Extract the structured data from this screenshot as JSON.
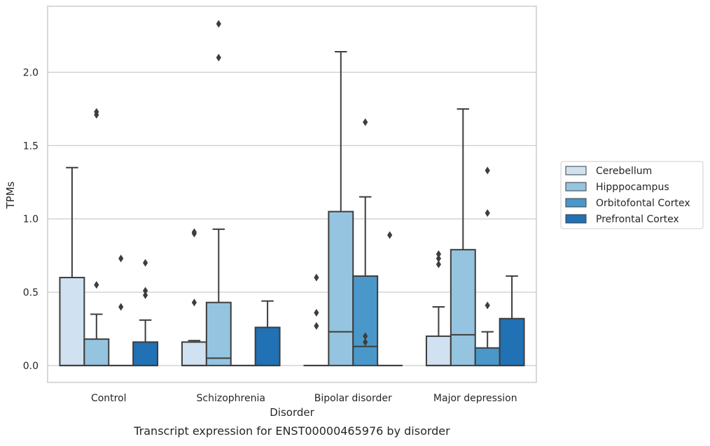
{
  "chart_data": {
    "type": "box",
    "title": "",
    "caption": "Transcript expression for ENST00000465976 by disorder",
    "xlabel": "Disorder",
    "ylabel": "TPMs",
    "ylim": [
      -0.115,
      2.45
    ],
    "yticks": [
      0.0,
      0.5,
      1.0,
      1.5,
      2.0
    ],
    "ytick_labels": [
      "0.0",
      "0.5",
      "1.0",
      "1.5",
      "2.0"
    ],
    "categories": [
      "Control",
      "Schizophrenia",
      "Bipolar disorder",
      "Major depression"
    ],
    "grid": "horizontal",
    "legend_position": "outside-right",
    "series": [
      {
        "name": "Cerebellum",
        "color": "#d0e1f2",
        "boxes": [
          {
            "whislo": 0.0,
            "q1": 0.0,
            "med": 0.0,
            "q3": 0.6,
            "whishi": 1.35,
            "fliers": []
          },
          {
            "whislo": 0.0,
            "q1": 0.0,
            "med": 0.0,
            "q3": 0.16,
            "whishi": 0.17,
            "fliers": [
              0.43,
              0.9,
              0.91
            ]
          },
          {
            "whislo": 0.0,
            "q1": 0.0,
            "med": 0.0,
            "q3": 0.0,
            "whishi": 0.0,
            "fliers": [
              0.27,
              0.36,
              0.6
            ]
          },
          {
            "whislo": 0.0,
            "q1": 0.0,
            "med": 0.0,
            "q3": 0.2,
            "whishi": 0.4,
            "fliers": [
              0.69,
              0.73,
              0.76
            ]
          }
        ]
      },
      {
        "name": "Hipppocampus",
        "color": "#94c4df",
        "boxes": [
          {
            "whislo": 0.0,
            "q1": 0.0,
            "med": 0.0,
            "q3": 0.18,
            "whishi": 0.35,
            "fliers": [
              0.55,
              1.71,
              1.73
            ]
          },
          {
            "whislo": 0.0,
            "q1": 0.0,
            "med": 0.05,
            "q3": 0.43,
            "whishi": 0.93,
            "fliers": [
              2.1,
              2.33
            ]
          },
          {
            "whislo": 0.0,
            "q1": 0.0,
            "med": 0.23,
            "q3": 1.05,
            "whishi": 2.14,
            "fliers": []
          },
          {
            "whislo": 0.0,
            "q1": 0.0,
            "med": 0.21,
            "q3": 0.79,
            "whishi": 1.75,
            "fliers": []
          }
        ]
      },
      {
        "name": "Orbitofontal Cortex",
        "color": "#4a98c9",
        "boxes": [
          {
            "whislo": 0.0,
            "q1": 0.0,
            "med": 0.0,
            "q3": 0.0,
            "whishi": 0.0,
            "fliers": [
              0.4,
              0.73
            ]
          },
          {
            "whislo": 0.0,
            "q1": 0.0,
            "med": 0.0,
            "q3": 0.0,
            "whishi": 0.0,
            "fliers": []
          },
          {
            "whislo": 0.0,
            "q1": 0.0,
            "med": 0.13,
            "q3": 0.61,
            "whishi": 1.15,
            "fliers": [
              0.16,
              0.2,
              1.66
            ]
          },
          {
            "whislo": 0.0,
            "q1": 0.0,
            "med": 0.0,
            "q3": 0.12,
            "whishi": 0.23,
            "fliers": [
              0.41,
              1.04,
              1.33
            ]
          }
        ]
      },
      {
        "name": "Prefrontal Cortex",
        "color": "#2171b5",
        "boxes": [
          {
            "whislo": 0.0,
            "q1": 0.0,
            "med": 0.0,
            "q3": 0.16,
            "whishi": 0.31,
            "fliers": [
              0.48,
              0.51,
              0.7
            ]
          },
          {
            "whislo": 0.0,
            "q1": 0.0,
            "med": 0.0,
            "q3": 0.26,
            "whishi": 0.44,
            "fliers": []
          },
          {
            "whislo": 0.0,
            "q1": 0.0,
            "med": 0.0,
            "q3": 0.0,
            "whishi": 0.0,
            "fliers": [
              0.89
            ]
          },
          {
            "whislo": 0.0,
            "q1": 0.0,
            "med": 0.0,
            "q3": 0.32,
            "whishi": 0.61,
            "fliers": []
          }
        ]
      }
    ]
  }
}
